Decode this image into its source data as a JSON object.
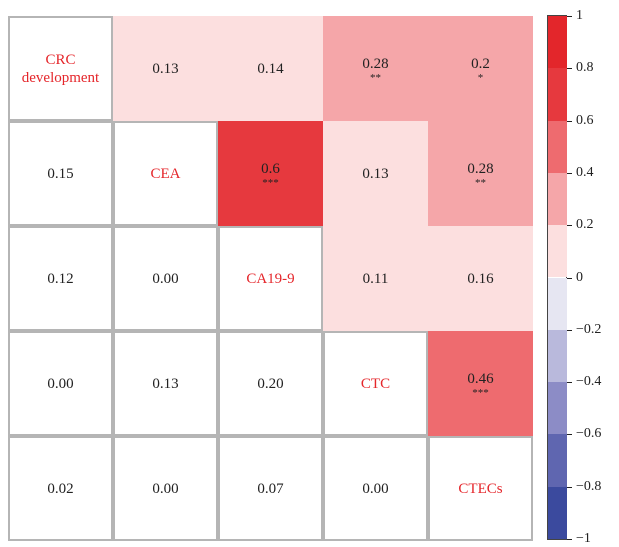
{
  "chart_data": {
    "type": "heatmap",
    "variables": [
      "CRC development",
      "CEA",
      "CA19-9",
      "CTC",
      "CTECs"
    ],
    "values": [
      [
        null,
        0.13,
        0.14,
        0.28,
        0.2
      ],
      [
        0.15,
        null,
        0.6,
        0.13,
        0.28
      ],
      [
        0.12,
        0.0,
        null,
        0.11,
        0.16
      ],
      [
        0.0,
        0.13,
        0.2,
        null,
        0.46
      ],
      [
        0.02,
        0.0,
        0.07,
        0.0,
        null
      ]
    ],
    "value_labels": [
      [
        null,
        "0.13",
        "0.14",
        "0.28",
        "0.2"
      ],
      [
        "0.15",
        null,
        "0.6",
        "0.13",
        "0.28"
      ],
      [
        "0.12",
        "0.00",
        null,
        "0.11",
        "0.16"
      ],
      [
        "0.00",
        "0.13",
        "0.20",
        null,
        "0.46"
      ],
      [
        "0.02",
        "0.00",
        "0.07",
        "0.00",
        null
      ]
    ],
    "stars": [
      [
        null,
        null,
        null,
        "**",
        "*"
      ],
      [
        null,
        null,
        "***",
        null,
        "**"
      ],
      [
        null,
        null,
        null,
        null,
        null
      ],
      [
        null,
        null,
        null,
        null,
        "***"
      ],
      [
        null,
        null,
        null,
        null,
        null
      ]
    ],
    "clim": [
      -1,
      1
    ],
    "colors": [
      "#3b4a9e",
      "#5f66b0",
      "#8c8cc6",
      "#b9b9dc",
      "#e6e6f2",
      "#fcdfdf",
      "#f5a6a9",
      "#ee6b6f",
      "#e6393e",
      "#e3262b"
    ],
    "cticks": [
      1,
      0.8,
      0.6,
      0.4,
      0.2,
      0,
      {
        "value": -0.2,
        "label": "−0.2"
      },
      {
        "value": -0.4,
        "label": "−0.4"
      },
      {
        "value": -0.6,
        "label": "−0.6"
      },
      {
        "value": -0.8,
        "label": "−0.8"
      },
      {
        "value": -1,
        "label": "−1"
      }
    ]
  }
}
